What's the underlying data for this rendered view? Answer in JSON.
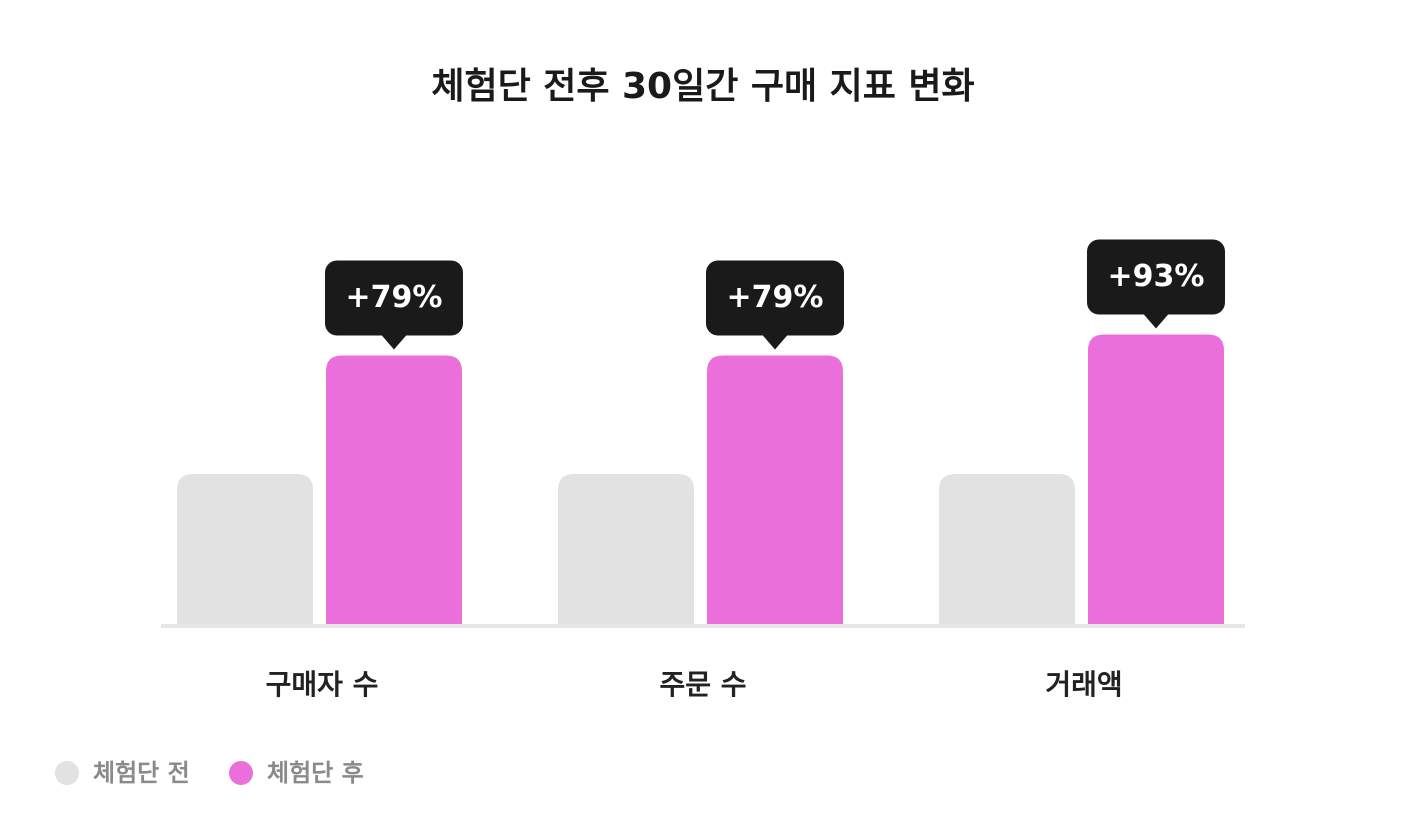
{
  "chart_data": {
    "type": "bar",
    "title": "체험단 전후 30일간 구매 지표 변화",
    "categories": [
      "구매자 수",
      "주문 수",
      "거래액"
    ],
    "series": [
      {
        "name": "체험단 전",
        "color": "#e2e2e2",
        "values": [
          100,
          100,
          100
        ]
      },
      {
        "name": "체험단 후",
        "color": "#eb6fda",
        "values": [
          179,
          179,
          193
        ]
      }
    ],
    "annotations": [
      "+79%",
      "+79%",
      "+93%"
    ],
    "ylim": [
      0,
      200
    ]
  }
}
